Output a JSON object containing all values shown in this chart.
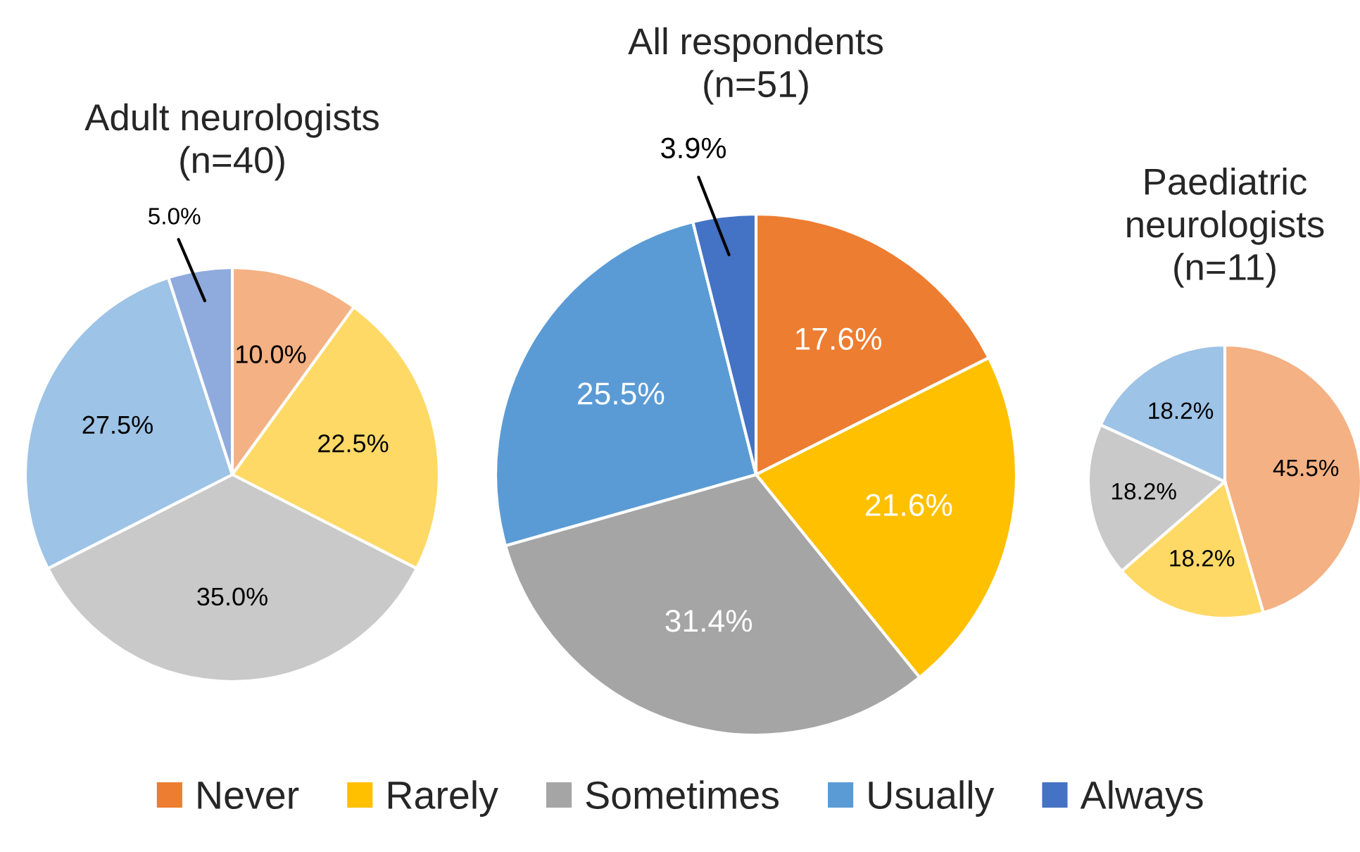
{
  "chart_data": [
    {
      "type": "pie",
      "title": "Adult neurologists\n(n=40)",
      "categories": [
        null,
        null,
        null,
        null,
        null
      ],
      "values": [
        10.0,
        22.5,
        35.0,
        27.5,
        5.0
      ],
      "colors": [
        "#f4b183",
        "#ffd966",
        "#c9c9c9",
        "#9dc3e6",
        "#8faadc"
      ],
      "value_labels": [
        "10.0%",
        "22.5%",
        "35.0%",
        "27.5%",
        "5.0%"
      ],
      "legend": false
    },
    {
      "type": "pie",
      "title": "All respondents\n(n=51)",
      "categories": [
        "Never",
        "Rarely",
        "Sometimes",
        "Usually",
        "Always"
      ],
      "values": [
        17.6,
        21.6,
        31.4,
        25.5,
        3.9
      ],
      "colors": [
        "#ed7d31",
        "#ffc000",
        "#a5a5a5",
        "#5b9bd5",
        "#4472c4"
      ],
      "value_labels": [
        "17.6%",
        "21.6%",
        "31.4%",
        "25.5%",
        "3.9%"
      ],
      "legend": "bottom"
    },
    {
      "type": "pie",
      "title": "Paediatric\nneurologists\n(n=11)",
      "categories": [
        null,
        null,
        null,
        null
      ],
      "values": [
        45.5,
        18.2,
        18.2,
        18.2
      ],
      "colors": [
        "#f4b183",
        "#ffd966",
        "#c9c9c9",
        "#9dc3e6"
      ],
      "value_labels": [
        "45.5%",
        "18.2%",
        "18.2%",
        "18.2%"
      ],
      "legend": false
    }
  ]
}
